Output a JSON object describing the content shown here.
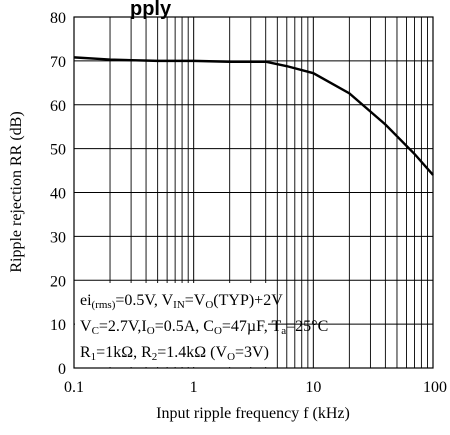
{
  "chart_data": {
    "type": "line",
    "title": "pply",
    "xlabel": "Input ripple frequency f (kHz)",
    "ylabel": "Ripple rejection RR (dB)",
    "xscale": "log",
    "xlim": [
      0.1,
      100
    ],
    "ylim": [
      0,
      80
    ],
    "grid": true,
    "x_tick_labels": [
      "0.1",
      "1",
      "10",
      "100"
    ],
    "y_tick_labels": [
      "0",
      "10",
      "20",
      "30",
      "40",
      "50",
      "60",
      "70",
      "80"
    ],
    "x_ticks": [
      0.1,
      1,
      10,
      100
    ],
    "y_ticks": [
      0,
      10,
      20,
      30,
      40,
      50,
      60,
      70,
      80
    ],
    "series": [
      {
        "x": [
          0.1,
          0.2,
          0.5,
          1,
          2,
          4,
          6,
          10,
          20,
          40,
          70,
          100
        ],
        "y": [
          70.8,
          70.3,
          70.0,
          70.0,
          69.8,
          69.8,
          68.8,
          67.2,
          62.6,
          55.5,
          48.8,
          44.0
        ]
      }
    ],
    "conditions": {
      "line1": {
        "p1": "ei",
        "p1_sub": "(rms)",
        "p2": "=0.5V, V",
        "p2_sub": "IN",
        "p3": "=V",
        "p3_sub": "O",
        "p4": "(TYP)+2V"
      },
      "line2": {
        "p1": "V",
        "p1_sub": "C",
        "p2": "=2.7V,I",
        "p2_sub": "O",
        "p3": "=0.5A, C",
        "p3_sub": "O",
        "p4": "=47µF, T",
        "p4_sub": "a",
        "p5": "=25°C"
      },
      "line3": {
        "p1": "R",
        "p1_sub": "1",
        "p2": "=1kΩ, R",
        "p2_sub": "2",
        "p3": "=1.4kΩ (V",
        "p3_sub": "O",
        "p4": "=3V)"
      }
    },
    "colors": {
      "line": "#000000",
      "grid": "#000000",
      "background": "#ffffff"
    }
  }
}
